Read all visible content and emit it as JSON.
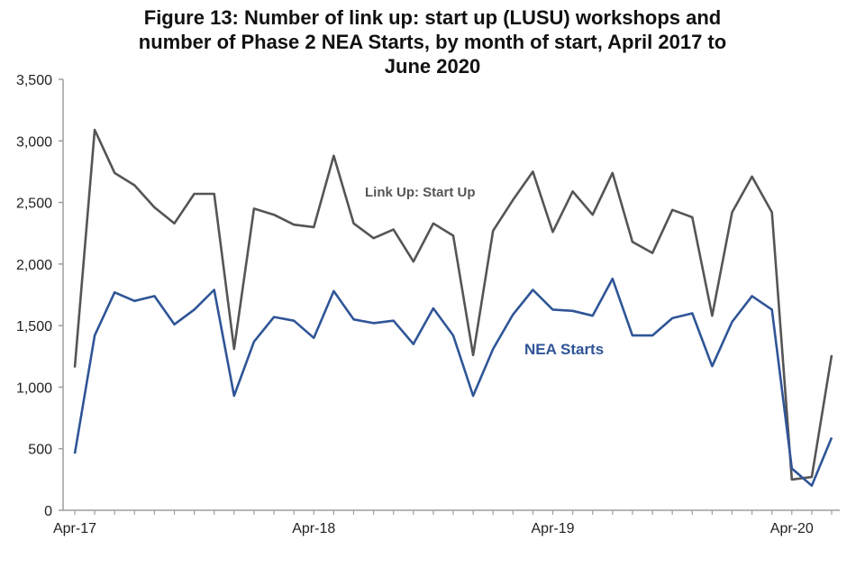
{
  "title_lines": [
    "Figure 13: Number of link up: start up (LUSU) workshops and",
    "number of Phase 2 NEA Starts, by month of start, April 2017 to",
    "June 2020"
  ],
  "colors": {
    "lusu": "#555555",
    "nea": "#2f5597",
    "axis": "#9e9e9e"
  },
  "chart_data": {
    "type": "line",
    "title": "Figure 13: Number of link up: start up (LUSU) workshops and number of Phase 2 NEA Starts, by month of start, April 2017 to June 2020",
    "xlabel": "",
    "ylabel": "",
    "x": [
      "Apr-17",
      "May-17",
      "Jun-17",
      "Jul-17",
      "Aug-17",
      "Sep-17",
      "Oct-17",
      "Nov-17",
      "Dec-17",
      "Jan-18",
      "Feb-18",
      "Mar-18",
      "Apr-18",
      "May-18",
      "Jun-18",
      "Jul-18",
      "Aug-18",
      "Sep-18",
      "Oct-18",
      "Nov-18",
      "Dec-18",
      "Jan-19",
      "Feb-19",
      "Mar-19",
      "Apr-19",
      "May-19",
      "Jun-19",
      "Jul-19",
      "Aug-19",
      "Sep-19",
      "Oct-19",
      "Nov-19",
      "Dec-19",
      "Jan-20",
      "Feb-20",
      "Mar-20",
      "Apr-20",
      "May-20",
      "Jun-20"
    ],
    "x_tick_labels": [
      "Apr-17",
      "Apr-18",
      "Apr-19",
      "Apr-20"
    ],
    "ylim": [
      0,
      3500
    ],
    "y_ticks": [
      0,
      500,
      1000,
      1500,
      2000,
      2500,
      3000,
      3500
    ],
    "y_tick_labels": [
      "0",
      "500",
      "1,000",
      "1,500",
      "2,000",
      "2,500",
      "3,000",
      "3,500"
    ],
    "grid": false,
    "series": [
      {
        "name": "Link Up: Start Up",
        "values": [
          1160,
          3090,
          2740,
          2640,
          2460,
          2330,
          2570,
          2570,
          1310,
          2450,
          2400,
          2320,
          2300,
          2880,
          2330,
          2210,
          2280,
          2020,
          2330,
          2230,
          1260,
          2270,
          2520,
          2750,
          2260,
          2590,
          2400,
          2740,
          2180,
          2090,
          2440,
          2380,
          1580,
          2420,
          2710,
          2420,
          250,
          270,
          1260
        ]
      },
      {
        "name": "NEA Starts",
        "values": [
          460,
          1420,
          1770,
          1700,
          1740,
          1510,
          1630,
          1790,
          930,
          1370,
          1570,
          1540,
          1400,
          1780,
          1550,
          1520,
          1540,
          1350,
          1640,
          1420,
          930,
          1310,
          1590,
          1790,
          1630,
          1620,
          1580,
          1880,
          1420,
          1420,
          1560,
          1600,
          1170,
          1530,
          1740,
          1630,
          340,
          200,
          590
        ]
      }
    ]
  }
}
